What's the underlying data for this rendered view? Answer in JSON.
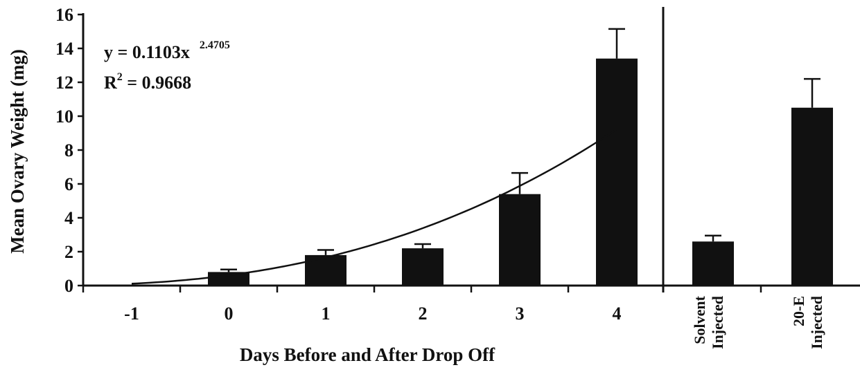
{
  "chart_data": {
    "type": "bar",
    "ylabel": "Mean Ovary Weight (mg)",
    "xlabel": "Days Before and After Drop Off",
    "ylim": [
      0,
      16
    ],
    "yticks": [
      0,
      2,
      4,
      6,
      8,
      10,
      12,
      14,
      16
    ],
    "grid": false,
    "legend": "none",
    "bar_color": "#111111",
    "time_series": {
      "categories": [
        "-1",
        "0",
        "1",
        "2",
        "3",
        "4"
      ],
      "x": [
        -1,
        0,
        1,
        2,
        3,
        4
      ],
      "values": [
        0,
        0.8,
        1.8,
        2.2,
        5.4,
        13.4
      ],
      "error_plus": [
        0,
        0.15,
        0.3,
        0.25,
        1.25,
        1.75
      ]
    },
    "treatment_groups": {
      "categories": [
        {
          "line1": "Solvent",
          "line2": "Injected"
        },
        {
          "line1": "20-E",
          "line2": "Injected"
        }
      ],
      "values": [
        2.6,
        10.5
      ],
      "error_plus": [
        0.35,
        1.7
      ]
    },
    "trendline": {
      "type": "power",
      "a": 0.1103,
      "b": 2.4705,
      "x_offset": 2,
      "x_range": [
        -1,
        4
      ],
      "equation": {
        "prefix": "y = 0.1103x",
        "exponent": "2.4705",
        "r2_label": "R",
        "r2_sup": "2",
        "r2_value": " = 0.9668"
      }
    }
  }
}
